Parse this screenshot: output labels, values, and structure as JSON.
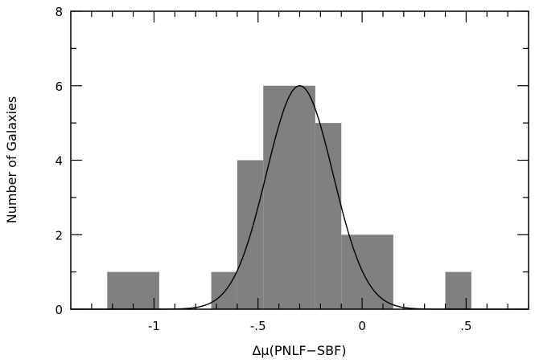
{
  "chart_data": {
    "type": "bar",
    "subtype": "histogram",
    "title": "",
    "xlabel": "Δμ(PNLF−SBF)",
    "ylabel": "Number of Galaxies",
    "xlim": [
      -1.4,
      0.8
    ],
    "ylim": [
      0,
      8
    ],
    "x_ticks": [
      {
        "value": -1.0,
        "label": "-1"
      },
      {
        "value": -0.5,
        "label": "-.5"
      },
      {
        "value": 0.0,
        "label": "0"
      },
      {
        "value": 0.5,
        "label": ".5"
      }
    ],
    "y_ticks": [
      {
        "value": 0,
        "label": "0"
      },
      {
        "value": 2,
        "label": "2"
      },
      {
        "value": 4,
        "label": "4"
      },
      {
        "value": 6,
        "label": "6"
      },
      {
        "value": 8,
        "label": "8"
      }
    ],
    "bins": [
      {
        "x0": -1.225,
        "x1": -0.975,
        "count": 1
      },
      {
        "x0": -0.725,
        "x1": -0.6,
        "count": 1
      },
      {
        "x0": -0.6,
        "x1": -0.475,
        "count": 4
      },
      {
        "x0": -0.475,
        "x1": -0.225,
        "count": 6
      },
      {
        "x0": -0.225,
        "x1": -0.1,
        "count": 5
      },
      {
        "x0": -0.1,
        "x1": 0.15,
        "count": 2
      },
      {
        "x0": 0.4,
        "x1": 0.525,
        "count": 1
      }
    ],
    "curve": {
      "type": "gaussian",
      "mean": -0.3,
      "sigma": 0.16,
      "amplitude": 6
    },
    "bar_color": "#808080",
    "curve_color": "#000000",
    "grid": false,
    "legend": "none"
  }
}
